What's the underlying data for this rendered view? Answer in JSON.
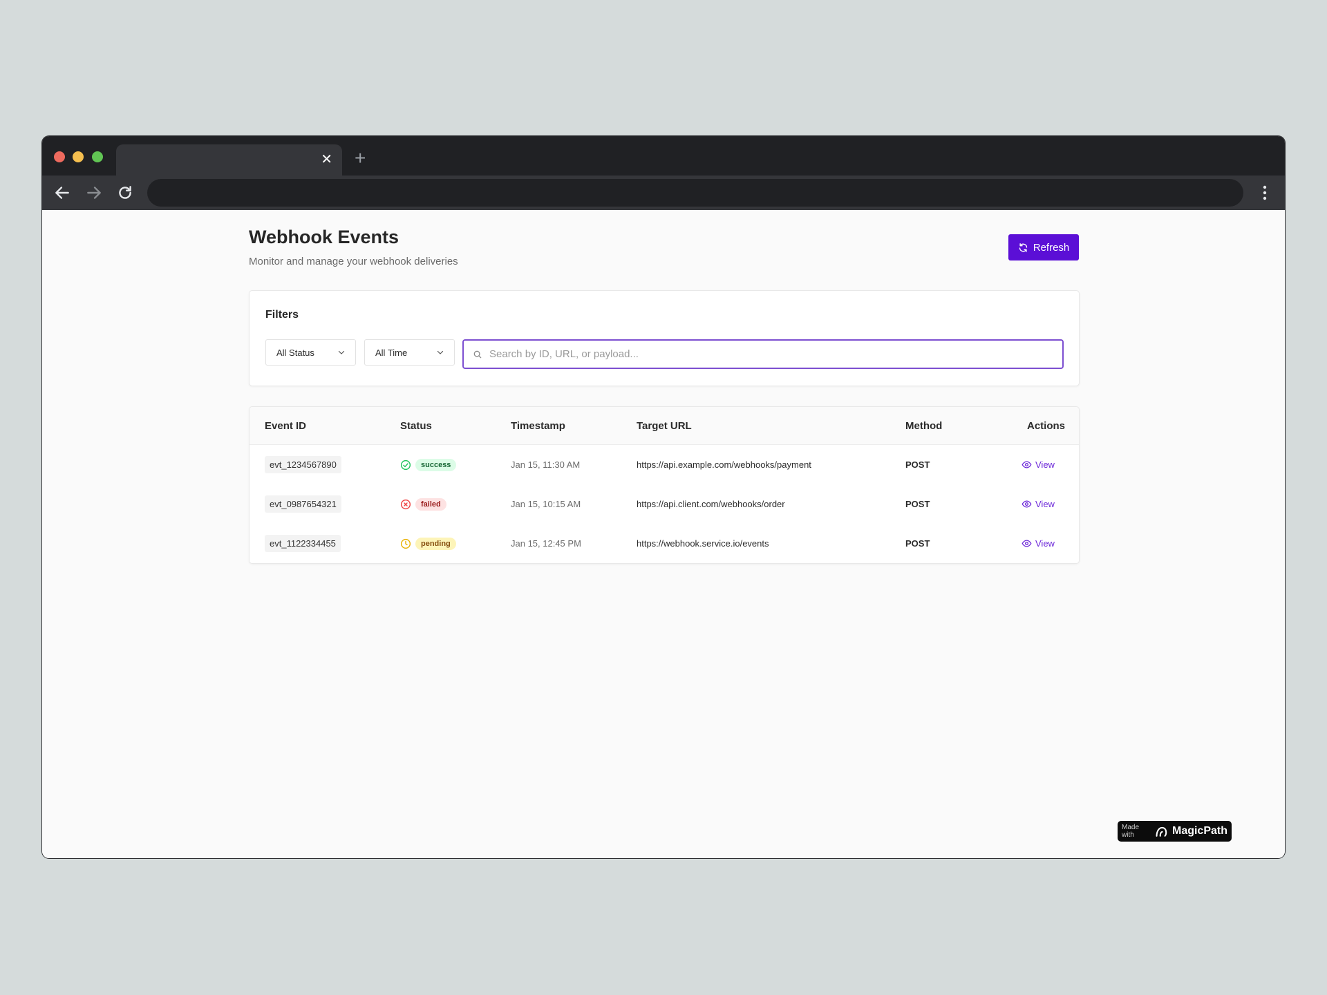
{
  "browser": {
    "tab_title": "",
    "tab_close": "✕",
    "new_tab": "+",
    "address": ""
  },
  "page": {
    "title": "Webhook Events",
    "subtitle": "Monitor and manage your webhook deliveries",
    "refresh_label": "Refresh"
  },
  "filters": {
    "title": "Filters",
    "status_select": "All Status",
    "time_select": "All Time",
    "search_placeholder": "Search by ID, URL, or payload...",
    "search_value": ""
  },
  "table": {
    "headers": {
      "event_id": "Event ID",
      "status": "Status",
      "timestamp": "Timestamp",
      "target_url": "Target URL",
      "method": "Method",
      "actions": "Actions"
    },
    "rows": [
      {
        "id": "evt_1234567890",
        "status": "success",
        "timestamp": "Jan 15, 11:30 AM",
        "url": "https://api.example.com/webhooks/payment",
        "method": "POST",
        "action": "View"
      },
      {
        "id": "evt_0987654321",
        "status": "failed",
        "timestamp": "Jan 15, 10:15 AM",
        "url": "https://api.client.com/webhooks/order",
        "method": "POST",
        "action": "View"
      },
      {
        "id": "evt_1122334455",
        "status": "pending",
        "timestamp": "Jan 15, 12:45 PM",
        "url": "https://webhook.service.io/events",
        "method": "POST",
        "action": "View"
      }
    ]
  },
  "badge": {
    "made_with": "Made with",
    "brand": "MagicPath"
  },
  "colors": {
    "accent": "#5b0fd6",
    "success": "#22c55e",
    "failed": "#ef4444",
    "pending": "#eab308"
  },
  "icons": {
    "refresh": "refresh-icon",
    "search": "search-icon",
    "chevron": "chevron-down-icon",
    "view": "eye-icon",
    "success": "check-circle-icon",
    "failed": "x-circle-icon",
    "pending": "clock-icon"
  }
}
